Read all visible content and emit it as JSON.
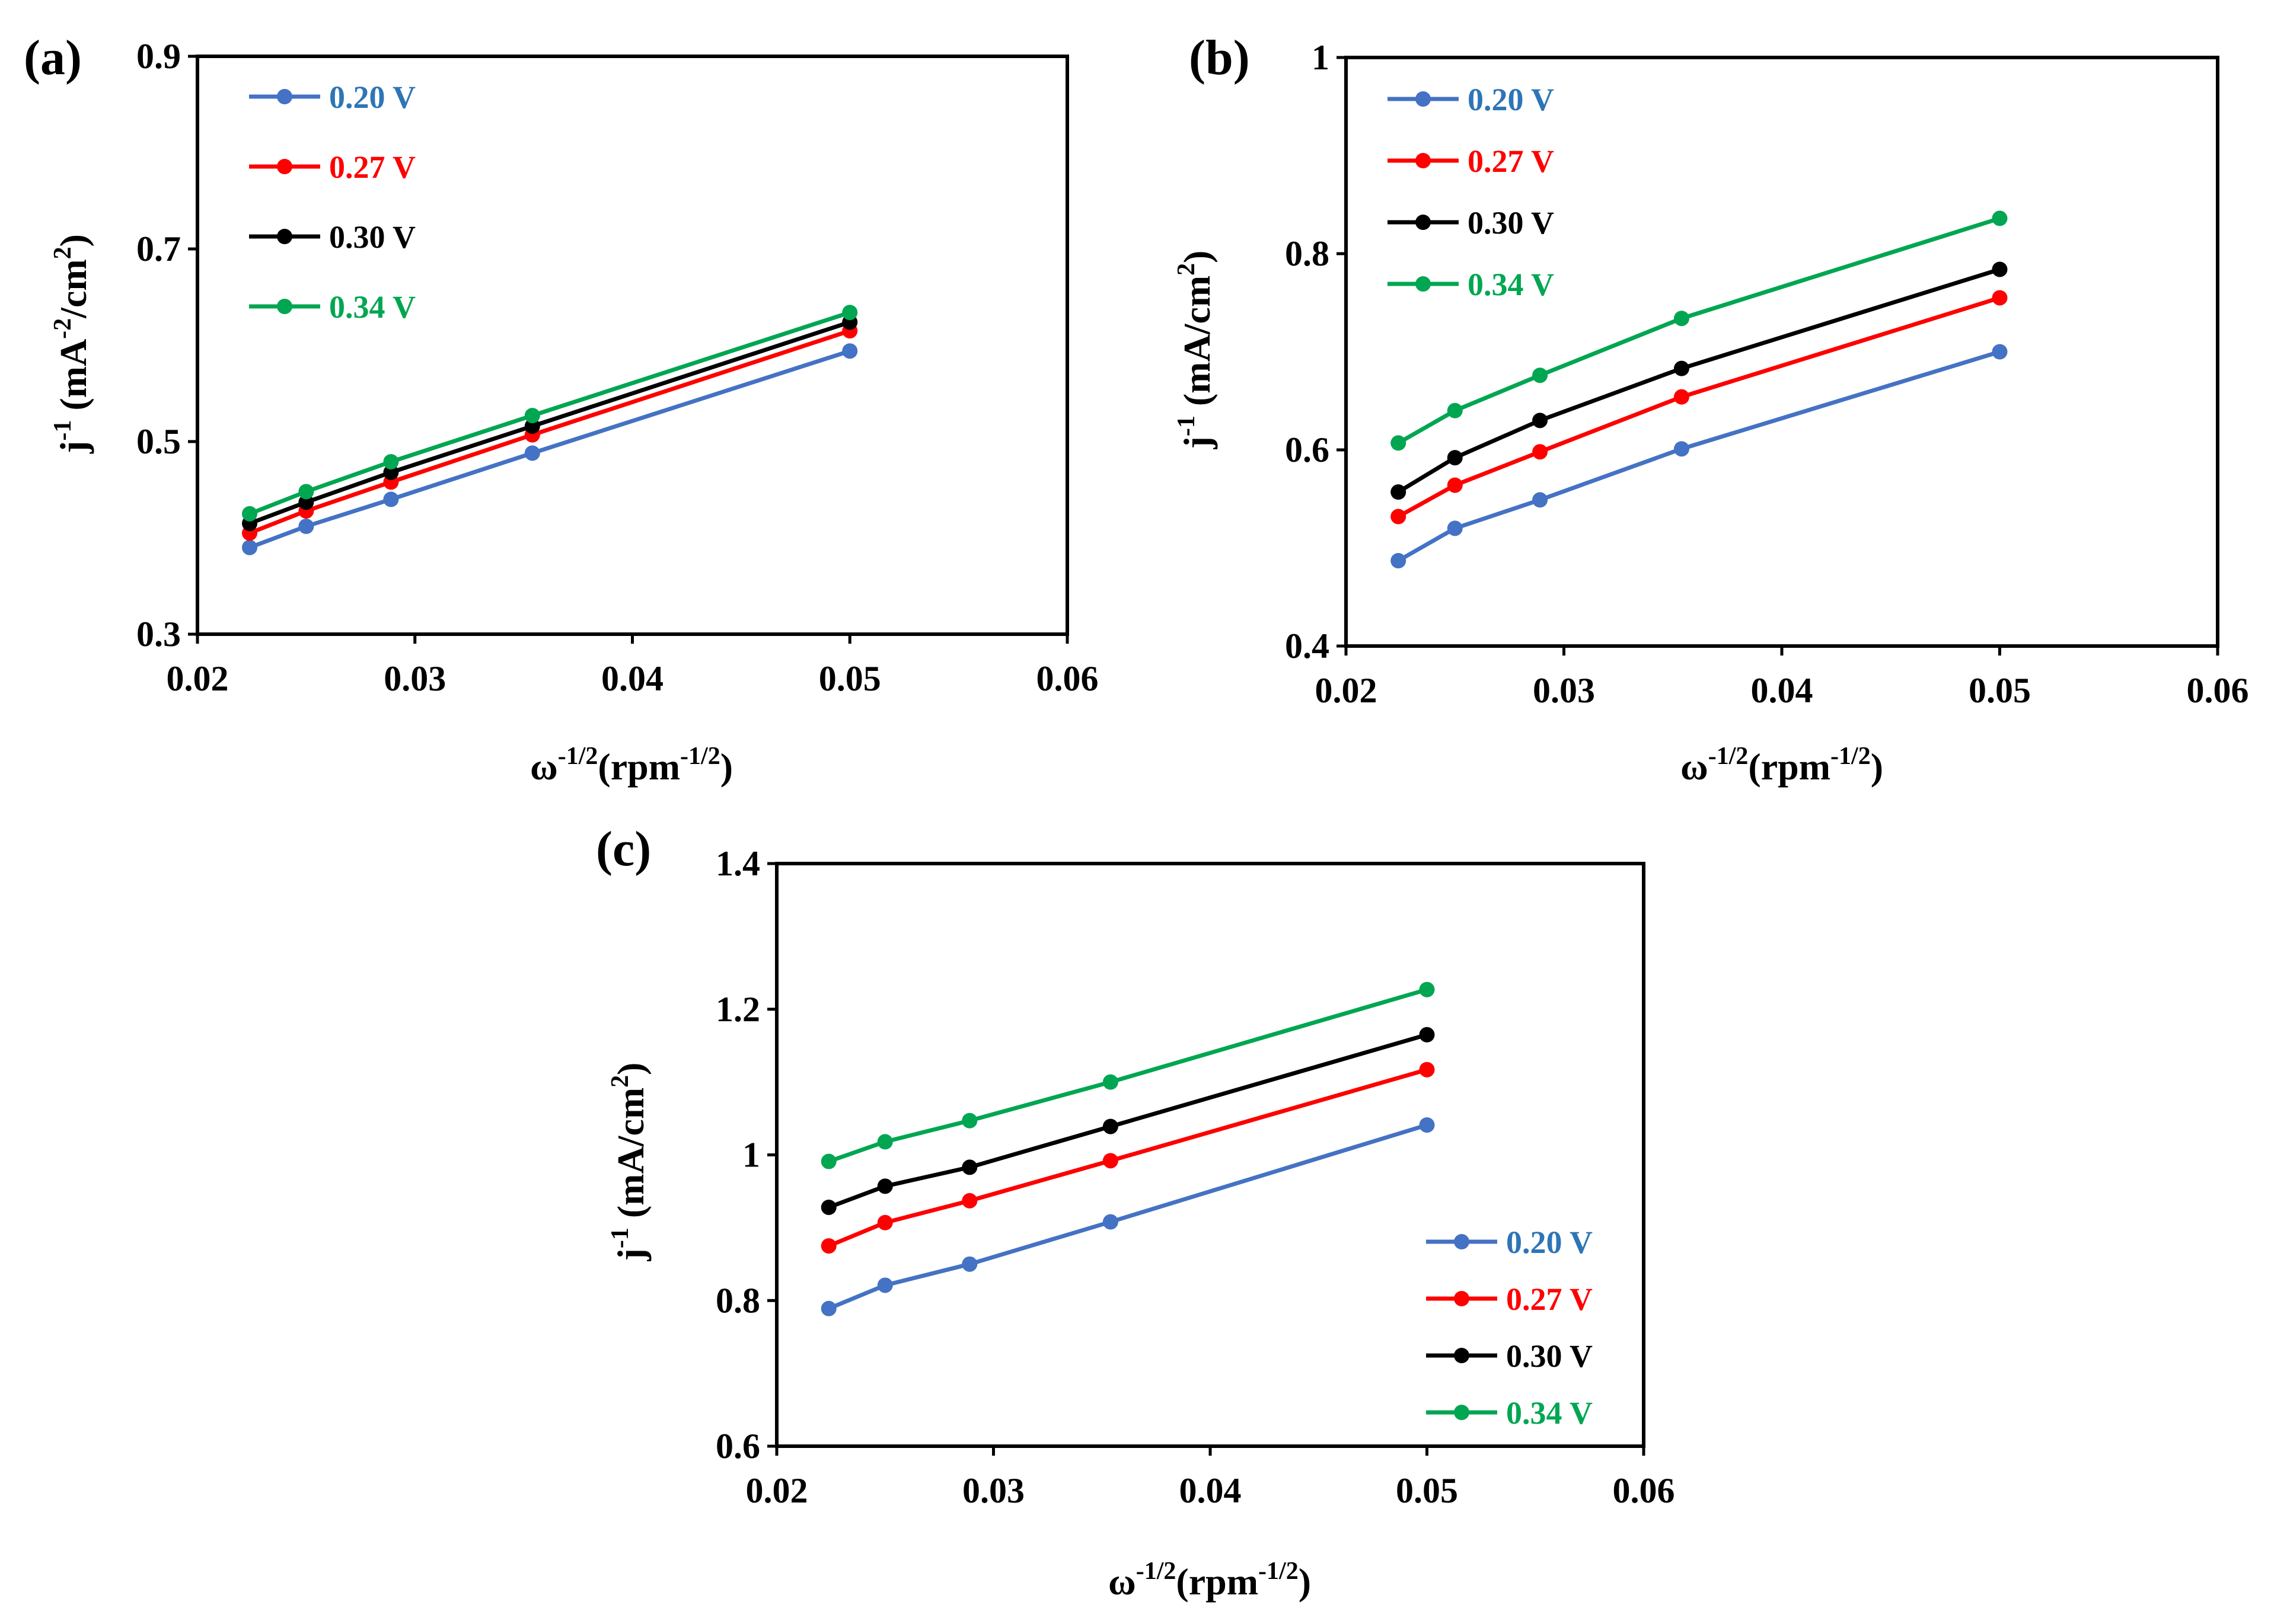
{
  "chart_data": [
    {
      "type": "line",
      "panel_label": "(a)",
      "xlabel": {
        "main": "ω",
        "sup1": "-1/2",
        "mid": "(rpm",
        "sup2": "-1/2",
        "end": ")"
      },
      "ylabel": {
        "main": "j",
        "sup1": "-1",
        "mid": " (mA",
        "sup2": "-2",
        "mid2": "/cm",
        "sup3": "2",
        "end": ")"
      },
      "xlim": [
        0.02,
        0.06
      ],
      "ylim": [
        0.3,
        0.9
      ],
      "xticks": [
        "0.02",
        "0.03",
        "0.04",
        "0.05",
        "0.06"
      ],
      "yticks": [
        "0.3",
        "0.5",
        "0.7",
        "0.9"
      ],
      "x": [
        0.0224,
        0.025,
        0.0289,
        0.0354,
        0.05
      ],
      "legend_position": "top-left",
      "series": [
        {
          "name": "0.20 V",
          "color": "#4472c4",
          "label_color": "#2e75b6",
          "values": [
            0.39,
            0.412,
            0.44,
            0.488,
            0.594
          ]
        },
        {
          "name": "0.27 V",
          "color": "#ff0000",
          "label_color": "#ff0000",
          "values": [
            0.405,
            0.428,
            0.458,
            0.507,
            0.615
          ]
        },
        {
          "name": "0.30 V",
          "color": "#000000",
          "label_color": "#000000",
          "values": [
            0.415,
            0.437,
            0.468,
            0.516,
            0.624
          ]
        },
        {
          "name": "0.34 V",
          "color": "#00a651",
          "label_color": "#00a651",
          "values": [
            0.425,
            0.448,
            0.479,
            0.527,
            0.634
          ]
        }
      ]
    },
    {
      "type": "line",
      "panel_label": "(b)",
      "xlabel": {
        "main": "ω",
        "sup1": "-1/2",
        "mid": "(rpm",
        "sup2": "-1/2",
        "end": ")"
      },
      "ylabel": {
        "main": "j",
        "sup1": "-1",
        "mid": " (mA/cm",
        "sup2": "2",
        "end": ")"
      },
      "xlim": [
        0.02,
        0.06
      ],
      "ylim": [
        0.4,
        1.0
      ],
      "xticks": [
        "0.02",
        "0.03",
        "0.04",
        "0.05",
        "0.06"
      ],
      "yticks": [
        "0.4",
        "0.6",
        "0.8",
        "1"
      ],
      "x": [
        0.0224,
        0.025,
        0.0289,
        0.0354,
        0.05
      ],
      "legend_position": "top-left",
      "series": [
        {
          "name": "0.20 V",
          "color": "#4472c4",
          "label_color": "#2e75b6",
          "values": [
            0.487,
            0.52,
            0.549,
            0.601,
            0.7
          ]
        },
        {
          "name": "0.27 V",
          "color": "#ff0000",
          "label_color": "#ff0000",
          "values": [
            0.532,
            0.564,
            0.598,
            0.654,
            0.755
          ]
        },
        {
          "name": "0.30 V",
          "color": "#000000",
          "label_color": "#000000",
          "values": [
            0.557,
            0.592,
            0.63,
            0.683,
            0.784
          ]
        },
        {
          "name": "0.34 V",
          "color": "#00a651",
          "label_color": "#00a651",
          "values": [
            0.607,
            0.64,
            0.676,
            0.734,
            0.836
          ]
        }
      ]
    },
    {
      "type": "line",
      "panel_label": "(c)",
      "xlabel": {
        "main": "ω",
        "sup1": "-1/2",
        "mid": "(rpm",
        "sup2": "-1/2",
        "end": ")"
      },
      "ylabel": {
        "main": "j",
        "sup1": "-1",
        "mid": " (mA/cm",
        "sup2": "2",
        "end": ")"
      },
      "xlim": [
        0.02,
        0.06
      ],
      "ylim": [
        0.6,
        1.4
      ],
      "xticks": [
        "0.02",
        "0.03",
        "0.04",
        "0.05",
        "0.06"
      ],
      "yticks": [
        "0.6",
        "0.8",
        "1",
        "1.2",
        "1.4"
      ],
      "x": [
        0.0224,
        0.025,
        0.0289,
        0.0354,
        0.05
      ],
      "legend_position": "bottom-right",
      "series": [
        {
          "name": "0.20 V",
          "color": "#4472c4",
          "label_color": "#2e75b6",
          "values": [
            0.789,
            0.821,
            0.85,
            0.908,
            1.041
          ]
        },
        {
          "name": "0.27 V",
          "color": "#ff0000",
          "label_color": "#ff0000",
          "values": [
            0.875,
            0.907,
            0.937,
            0.992,
            1.117
          ]
        },
        {
          "name": "0.30 V",
          "color": "#000000",
          "label_color": "#000000",
          "values": [
            0.928,
            0.957,
            0.983,
            1.039,
            1.165
          ]
        },
        {
          "name": "0.34 V",
          "color": "#00a651",
          "label_color": "#00a651",
          "values": [
            0.991,
            1.018,
            1.047,
            1.1,
            1.227
          ]
        }
      ]
    }
  ]
}
